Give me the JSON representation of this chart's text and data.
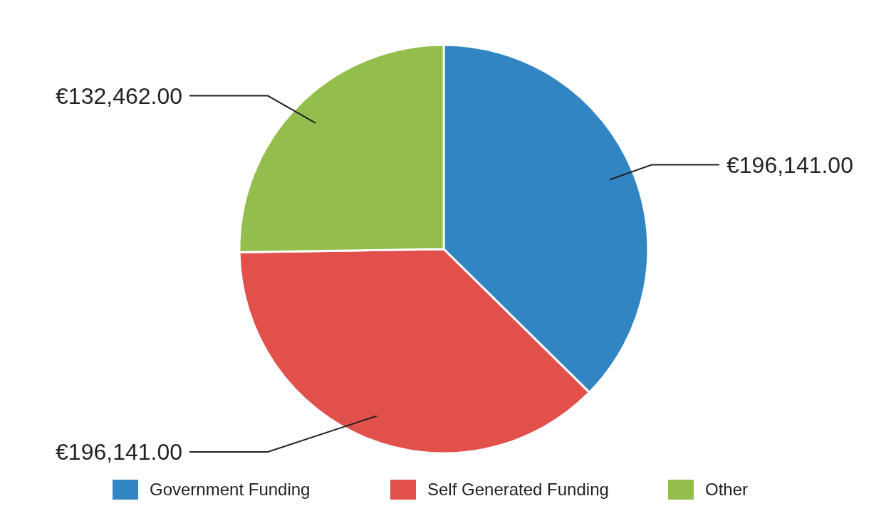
{
  "chart_data": {
    "type": "pie",
    "categories": [
      "Government Funding",
      "Self Generated Funding",
      "Other"
    ],
    "values": [
      196141.0,
      196141.0,
      132462.0
    ],
    "colors": [
      "#3285c3",
      "#e1504a",
      "#93be4c"
    ],
    "value_labels": [
      "€196,141.00",
      "€196,141.00",
      "€132,462.00"
    ],
    "legend": "bottom"
  }
}
